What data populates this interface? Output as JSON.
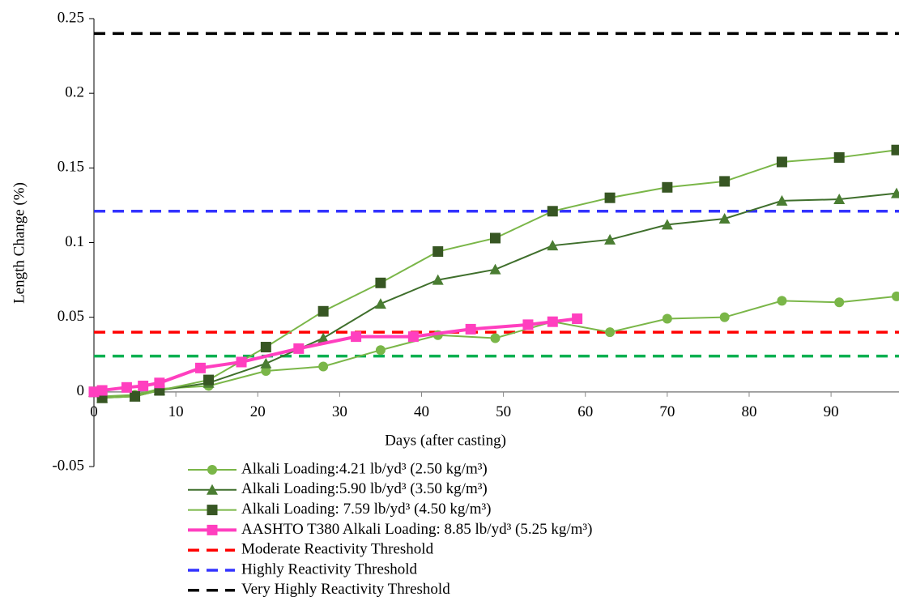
{
  "chart_data": {
    "type": "line",
    "xlabel": "Days (after casting)",
    "ylabel": "Length Change (%)",
    "xlim": [
      0,
      98
    ],
    "ylim": [
      -0.05,
      0.25
    ],
    "xticks": [
      0,
      10,
      20,
      30,
      40,
      50,
      60,
      70,
      80,
      90
    ],
    "yticks": [
      -0.05,
      0,
      0.05,
      0.1,
      0.15,
      0.2,
      0.25
    ],
    "series": [
      {
        "name": "Alkali Loading:4.21 lb/yd³ (2.50 kg/m³)",
        "color": "#7ab648",
        "marker_color": "#7ab648",
        "marker": "circle",
        "line_width": 2,
        "x": [
          0,
          1,
          5,
          8,
          14,
          21,
          28,
          35,
          42,
          49,
          56,
          63,
          70,
          77,
          84,
          91,
          98
        ],
        "values": [
          0,
          -0.003,
          -0.002,
          0.002,
          0.004,
          0.014,
          0.017,
          0.028,
          0.038,
          0.036,
          0.047,
          0.04,
          0.049,
          0.05,
          0.061,
          0.06,
          0.064
        ]
      },
      {
        "name": "Alkali Loading:5.90 lb/yd³ (3.50 kg/m³)",
        "color": "#3f6f2c",
        "marker_color": "#4a7d32",
        "marker": "triangle",
        "line_width": 2,
        "x": [
          0,
          1,
          5,
          8,
          14,
          21,
          28,
          35,
          42,
          49,
          56,
          63,
          70,
          77,
          84,
          91,
          98
        ],
        "values": [
          0,
          -0.004,
          -0.003,
          0.001,
          0.006,
          0.019,
          0.036,
          0.059,
          0.075,
          0.082,
          0.098,
          0.102,
          0.112,
          0.116,
          0.128,
          0.129,
          0.133
        ]
      },
      {
        "name": "Alkali Loading: 7.59 lb/yd³ (4.50 kg/m³)",
        "color": "#7ab648",
        "marker_color": "#375623",
        "marker": "square",
        "line_width": 2,
        "x": [
          0,
          1,
          5,
          8,
          14,
          21,
          28,
          35,
          42,
          49,
          56,
          63,
          70,
          77,
          84,
          91,
          98
        ],
        "values": [
          0,
          -0.004,
          -0.003,
          0.001,
          0.008,
          0.03,
          0.054,
          0.073,
          0.094,
          0.103,
          0.121,
          0.13,
          0.137,
          0.141,
          0.154,
          0.157,
          0.162
        ]
      },
      {
        "name": "AASHTO T380  Alkali Loading: 8.85 lb/yd³ (5.25 kg/m³)",
        "color": "#ff3fbf",
        "marker_color": "#ff3fbf",
        "marker": "square",
        "line_width": 4,
        "x": [
          0,
          1,
          4,
          6,
          8,
          13,
          18,
          25,
          32,
          39,
          46,
          53,
          56,
          59
        ],
        "values": [
          0,
          0.001,
          0.003,
          0.004,
          0.006,
          0.016,
          0.02,
          0.029,
          0.037,
          0.037,
          0.042,
          0.045,
          0.047,
          0.049
        ]
      }
    ],
    "thresholds": [
      {
        "name": "Moderate Reactivity Threshold",
        "color": "#ff0000",
        "value": 0.04
      },
      {
        "name": "Highly Reactivity Threshold",
        "color": "#3333ff",
        "value": 0.121
      },
      {
        "name": "Very Highly Reactivity Threshold",
        "color": "#000000",
        "value": 0.24
      },
      {
        "color": "#00b050",
        "value": 0.024
      }
    ]
  }
}
